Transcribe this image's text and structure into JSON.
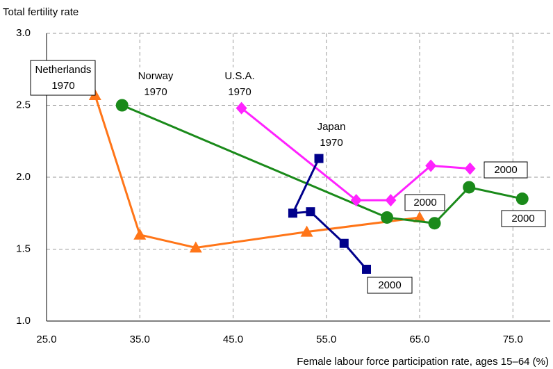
{
  "chart_data": {
    "type": "line",
    "ylabel": "Total fertility rate",
    "xlabel": "Female labour force participation rate, ages 15–64 (%)",
    "xlim": [
      25,
      79
    ],
    "ylim": [
      1.0,
      3.0
    ],
    "xticks": [
      {
        "value": 25,
        "label": "25.0"
      },
      {
        "value": 35,
        "label": "35.0"
      },
      {
        "value": 45,
        "label": "45.0"
      },
      {
        "value": 55,
        "label": "55.0"
      },
      {
        "value": 65,
        "label": "65.0"
      },
      {
        "value": 75,
        "label": "75.0"
      }
    ],
    "yticks": [
      {
        "value": 1.0,
        "label": "1.0"
      },
      {
        "value": 1.5,
        "label": "1.5"
      },
      {
        "value": 2.0,
        "label": "2.0"
      },
      {
        "value": 2.5,
        "label": "2.5"
      },
      {
        "value": 3.0,
        "label": "3.0"
      }
    ],
    "grid": true,
    "series": [
      {
        "color": "#ff7518",
        "marker": "triangle",
        "x": [
          30.2,
          35.0,
          41.0,
          52.9,
          65.0
        ],
        "values": [
          2.57,
          1.6,
          1.51,
          1.62,
          1.72
        ]
      },
      {
        "color": "#1a8a1a",
        "marker": "circle",
        "x": [
          33.1,
          61.5,
          66.6,
          70.3,
          76.0
        ],
        "values": [
          2.5,
          1.72,
          1.68,
          1.93,
          1.85
        ]
      },
      {
        "color": "#ff22ff",
        "marker": "diamond",
        "x": [
          45.9,
          58.2,
          61.9,
          66.2,
          70.4
        ],
        "values": [
          2.48,
          1.84,
          1.84,
          2.08,
          2.06
        ]
      },
      {
        "color": "#00008b",
        "marker": "square",
        "x": [
          54.2,
          51.4,
          53.3,
          56.9,
          59.3
        ],
        "values": [
          2.13,
          1.75,
          1.76,
          1.54,
          1.36
        ]
      }
    ],
    "annotations": [
      {
        "lines": [
          "Netherlands",
          "1970"
        ]
      },
      {
        "lines": [
          "Norway",
          "1970"
        ]
      },
      {
        "lines": [
          "U.S.A.",
          "1970"
        ]
      },
      {
        "lines": [
          "Japan",
          "1970"
        ]
      },
      {
        "lines": [
          "2000"
        ]
      },
      {
        "lines": [
          "2000"
        ]
      },
      {
        "lines": [
          "2000"
        ]
      },
      {
        "lines": [
          "2000"
        ]
      }
    ]
  }
}
